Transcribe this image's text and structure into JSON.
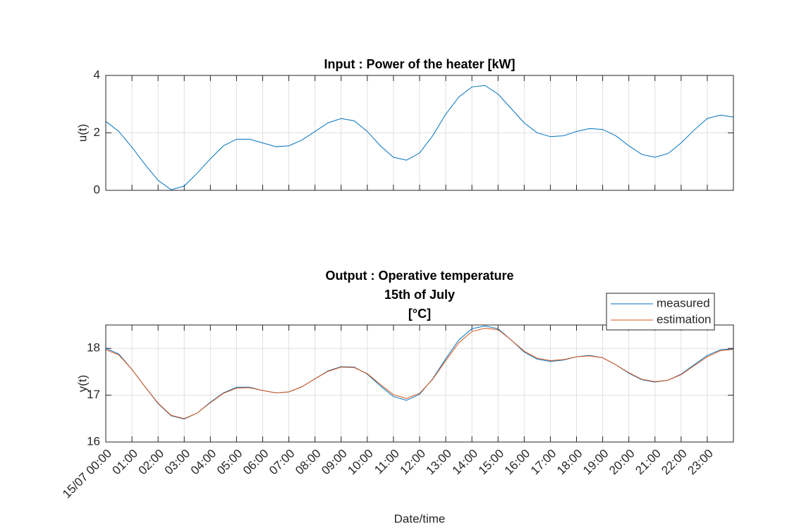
{
  "chart_data": [
    {
      "type": "line",
      "title": "Input : Power of the heater [kW]",
      "ylabel": "u(t)",
      "x": [
        0,
        0.5,
        1,
        1.5,
        2,
        2.5,
        3,
        3.5,
        4,
        4.5,
        5,
        5.5,
        6,
        6.5,
        7,
        7.5,
        8,
        8.5,
        9,
        9.5,
        10,
        10.5,
        11,
        11.5,
        12,
        12.5,
        13,
        13.5,
        14,
        14.5,
        15,
        15.5,
        16,
        16.5,
        17,
        17.5,
        18,
        18.5,
        19,
        19.5,
        20,
        20.5,
        21,
        21.5,
        22,
        22.5,
        23,
        23.5,
        24
      ],
      "series": [
        {
          "color": "#0072BD",
          "values": [
            2.4,
            2.05,
            1.5,
            0.9,
            0.35,
            0.02,
            0.15,
            0.6,
            1.1,
            1.55,
            1.78,
            1.78,
            1.65,
            1.52,
            1.55,
            1.75,
            2.05,
            2.35,
            2.5,
            2.42,
            2.05,
            1.55,
            1.15,
            1.05,
            1.3,
            1.9,
            2.65,
            3.25,
            3.6,
            3.65,
            3.35,
            2.85,
            2.35,
            2.0,
            1.87,
            1.9,
            2.05,
            2.15,
            2.12,
            1.9,
            1.55,
            1.25,
            1.15,
            1.28,
            1.65,
            2.1,
            2.5,
            2.62,
            2.55
          ]
        }
      ],
      "xlim": [
        0,
        24
      ],
      "xticks": [
        0,
        1,
        2,
        3,
        4,
        5,
        6,
        7,
        8,
        9,
        10,
        11,
        12,
        13,
        14,
        15,
        16,
        17,
        18,
        19,
        20,
        21,
        22,
        23
      ],
      "xtick_labels": false,
      "ylim": [
        0,
        4
      ],
      "yticks": [
        0,
        2,
        4
      ],
      "grid": true
    },
    {
      "type": "line",
      "title": [
        "Output :  Operative temperature",
        "15th of July",
        "[°C]"
      ],
      "ylabel": "y(t)",
      "xlabel": "Date/time",
      "x": [
        0,
        0.5,
        1,
        1.5,
        2,
        2.5,
        3,
        3.5,
        4,
        4.5,
        5,
        5.5,
        6,
        6.5,
        7,
        7.5,
        8,
        8.5,
        9,
        9.5,
        10,
        10.5,
        11,
        11.5,
        12,
        12.5,
        13,
        13.5,
        14,
        14.5,
        15,
        15.5,
        16,
        16.5,
        17,
        17.5,
        18,
        18.5,
        19,
        19.5,
        20,
        20.5,
        21,
        21.5,
        22,
        22.5,
        23,
        23.5,
        24
      ],
      "series": [
        {
          "name": "measured",
          "color": "#0072BD",
          "values": [
            18.0,
            17.88,
            17.55,
            17.18,
            16.82,
            16.56,
            16.49,
            16.62,
            16.85,
            17.05,
            17.17,
            17.17,
            17.1,
            17.05,
            17.07,
            17.18,
            17.35,
            17.52,
            17.61,
            17.6,
            17.45,
            17.2,
            16.97,
            16.89,
            17.02,
            17.35,
            17.78,
            18.18,
            18.42,
            18.48,
            18.42,
            18.18,
            17.92,
            17.77,
            17.72,
            17.75,
            17.82,
            17.85,
            17.8,
            17.65,
            17.47,
            17.33,
            17.28,
            17.32,
            17.45,
            17.65,
            17.85,
            17.97,
            17.99
          ]
        },
        {
          "name": "estimation",
          "color": "#D95319",
          "values": [
            17.97,
            17.86,
            17.55,
            17.18,
            16.83,
            16.57,
            16.5,
            16.62,
            16.84,
            17.04,
            17.15,
            17.16,
            17.1,
            17.05,
            17.07,
            17.18,
            17.35,
            17.51,
            17.6,
            17.59,
            17.46,
            17.23,
            17.01,
            16.93,
            17.04,
            17.34,
            17.74,
            18.12,
            18.36,
            18.43,
            18.4,
            18.18,
            17.94,
            17.79,
            17.74,
            17.76,
            17.82,
            17.84,
            17.8,
            17.65,
            17.48,
            17.34,
            17.29,
            17.32,
            17.44,
            17.63,
            17.82,
            17.95,
            17.98
          ]
        }
      ],
      "xlim": [
        0,
        24
      ],
      "xticks": [
        {
          "value": 0,
          "label": "15/07 00:00"
        },
        {
          "value": 1,
          "label": "01:00"
        },
        {
          "value": 2,
          "label": "02:00"
        },
        {
          "value": 3,
          "label": "03:00"
        },
        {
          "value": 4,
          "label": "04:00"
        },
        {
          "value": 5,
          "label": "05:00"
        },
        {
          "value": 6,
          "label": "06:00"
        },
        {
          "value": 7,
          "label": "07:00"
        },
        {
          "value": 8,
          "label": "08:00"
        },
        {
          "value": 9,
          "label": "09:00"
        },
        {
          "value": 10,
          "label": "10:00"
        },
        {
          "value": 11,
          "label": "11:00"
        },
        {
          "value": 12,
          "label": "12:00"
        },
        {
          "value": 13,
          "label": "13:00"
        },
        {
          "value": 14,
          "label": "14:00"
        },
        {
          "value": 15,
          "label": "15:00"
        },
        {
          "value": 16,
          "label": "16:00"
        },
        {
          "value": 17,
          "label": "17:00"
        },
        {
          "value": 18,
          "label": "18:00"
        },
        {
          "value": 19,
          "label": "19:00"
        },
        {
          "value": 20,
          "label": "20:00"
        },
        {
          "value": 21,
          "label": "21:00"
        },
        {
          "value": 22,
          "label": "22:00"
        },
        {
          "value": 23,
          "label": "23:00"
        }
      ],
      "xtick_labels": true,
      "ylim": [
        16,
        18.5
      ],
      "yticks": [
        16,
        17,
        18
      ],
      "grid": true,
      "legend": "northeast"
    }
  ]
}
